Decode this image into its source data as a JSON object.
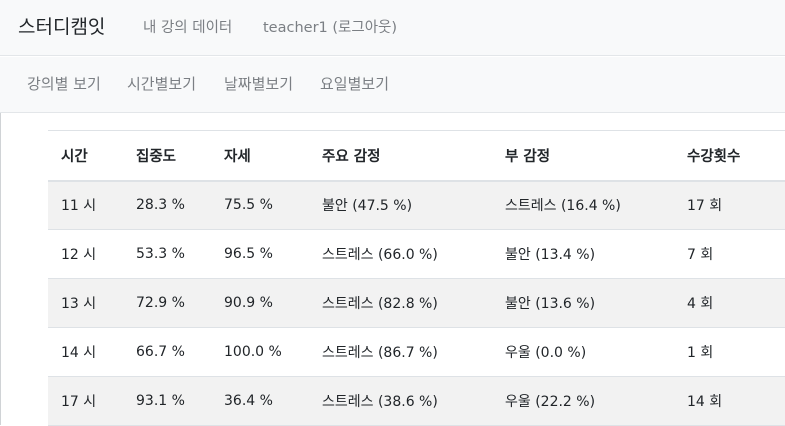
{
  "navbar": {
    "brand": "스터디캠잇",
    "links": [
      {
        "label": "내 강의 데이터"
      },
      {
        "label": "teacher1 (로그아웃)"
      }
    ]
  },
  "subnav": {
    "links": [
      {
        "label": "강의별 보기"
      },
      {
        "label": "시간별보기"
      },
      {
        "label": "날짜별보기"
      },
      {
        "label": "요일별보기"
      }
    ]
  },
  "table": {
    "headers": [
      "시간",
      "집중도",
      "자세",
      "주요 감정",
      "부 감정",
      "수강횟수"
    ],
    "rows": [
      [
        "11 시",
        "28.3 %",
        "75.5 %",
        "불안 (47.5 %)",
        "스트레스 (16.4 %)",
        "17 회"
      ],
      [
        "12 시",
        "53.3 %",
        "96.5 %",
        "스트레스 (66.0 %)",
        "불안 (13.4 %)",
        "7 회"
      ],
      [
        "13 시",
        "72.9 %",
        "90.9 %",
        "스트레스 (82.8 %)",
        "불안 (13.6 %)",
        "4 회"
      ],
      [
        "14 시",
        "66.7 %",
        "100.0 %",
        "스트레스 (86.7 %)",
        "우울 (0.0 %)",
        "1 회"
      ],
      [
        "17 시",
        "93.1 %",
        "36.4 %",
        "스트레스 (38.6 %)",
        "우울 (22.2 %)",
        "14 회"
      ]
    ]
  }
}
